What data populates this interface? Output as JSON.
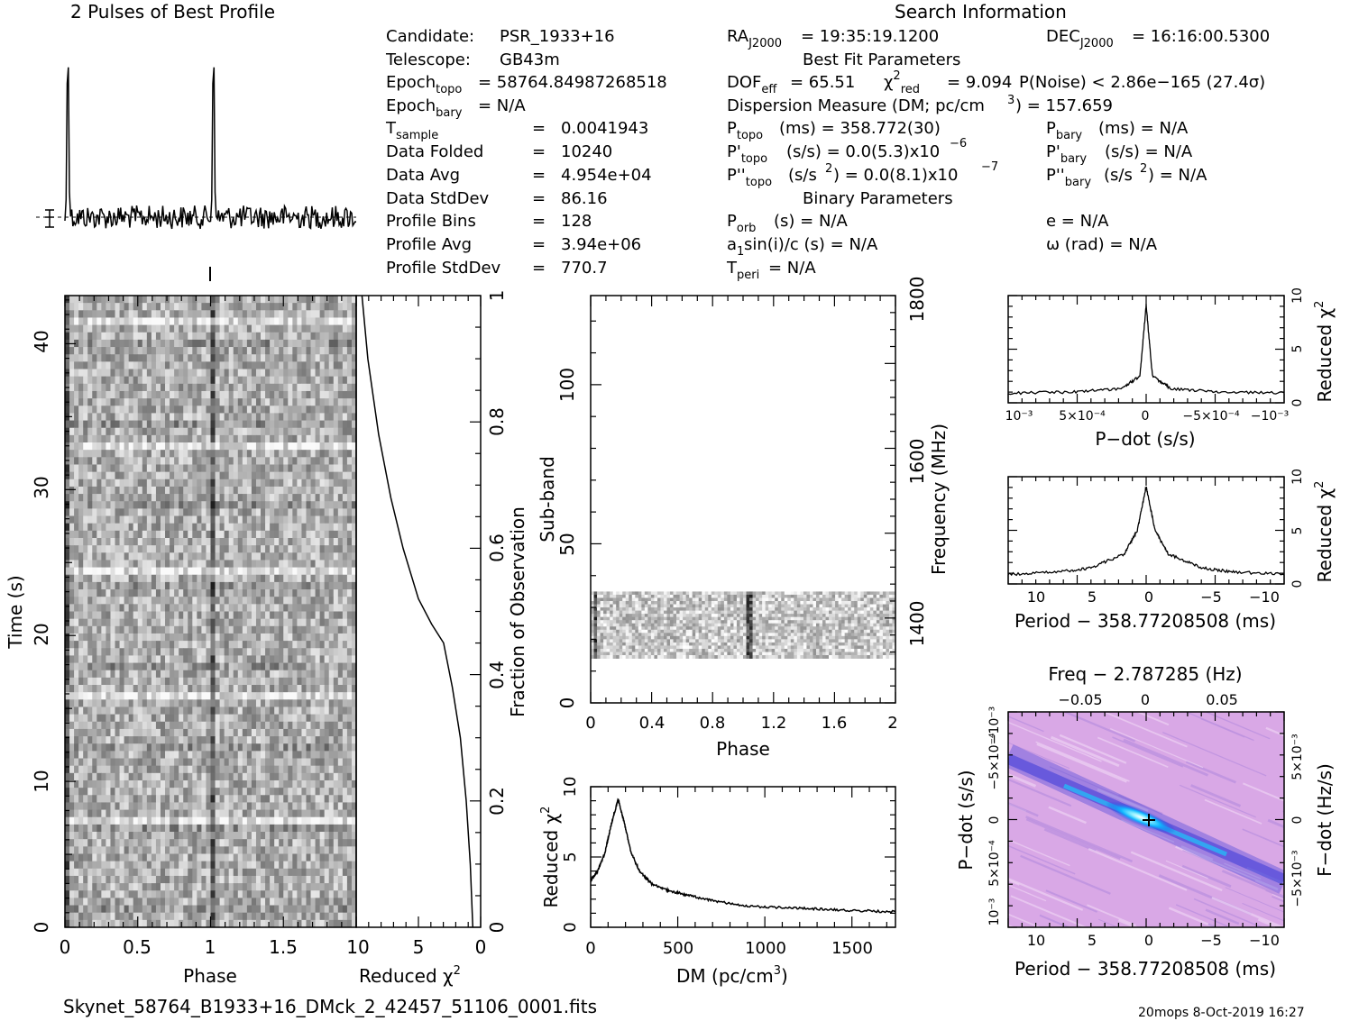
{
  "page": {
    "profile_title": "2 Pulses of Best Profile",
    "search_title": "Search Information",
    "best_fit_title": "Best Fit Parameters",
    "binary_title": "Binary Parameters",
    "filename": "Skynet_58764_B1933+16_DMck_2_42457_51106_0001.fits",
    "footer": "20mops   8-Oct-2019 16:27"
  },
  "info": {
    "candidate_label": "Candidate:",
    "candidate": "PSR_1933+16",
    "telescope_label": "Telescope:",
    "telescope": "GB43m",
    "epoch_topo": "= 58764.84987268518",
    "epoch_bary": "= N/A",
    "t_sample": "0.0041943",
    "data_folded": "10240",
    "data_avg": "4.954e+04",
    "data_stddev": "86.16",
    "profile_bins": "128",
    "profile_avg": "3.94e+06",
    "profile_stddev": "770.7",
    "ra": "= 19:35:19.1200",
    "dec": "= 16:16:00.5300",
    "dof_eff": "= 65.51",
    "chi2_red": "= 9.094",
    "p_noise": "P(Noise) < 2.86e−165   (27.4σ)",
    "dm_label": "Dispersion Measure (DM; pc/cm",
    "dm_value": ") = 157.659",
    "p_topo": "(ms) =  358.772(30)",
    "p_bary": "(ms) = N/A",
    "pd_topo": "(s/s) = 0.0(5.3)x10",
    "pd_topo_exp": "−6",
    "pd_bary": "(s/s) = N/A",
    "pdd_topo": "(s/s",
    "pdd_topo_mid": ") = 0.0(8.1)x10",
    "pdd_topo_exp": "−7",
    "pdd_bary": "(s/s",
    "pdd_bary_end": ") = N/A",
    "p_orb": "(s) = N/A",
    "e": "e = N/A",
    "a1sini": "sin(i)/c (s) = N/A",
    "omega": "ω (rad) = N/A",
    "t_peri": "= N/A"
  },
  "axes": {
    "phase": "Phase",
    "time": "Time (s)",
    "reduced": "Reduced",
    "fraction": "Fraction of Observation",
    "subband": "Sub-band",
    "frequency": "Frequency (MHz)",
    "dm_axis": "DM (pc/cm",
    "pdot": "P−dot (s/s)",
    "period": "Period − 358.77208508 (ms)",
    "freq": "Freq − 2.787285 (Hz)",
    "fdot": "F−dot (Hz/s)"
  },
  "colors": {
    "ink": "#000000",
    "pp_bg": "#d9a8e6",
    "pp_band": "#3a3ad8",
    "pp_core": "#10d8ff"
  },
  "chart_data": [
    {
      "type": "line",
      "title": "2 Pulses of Best Profile",
      "description_axis": "pulse phase 0-2",
      "x_range": [
        0,
        2
      ],
      "peaks_at_phase": [
        0.02,
        1.02
      ],
      "profile_bins": 128
    },
    {
      "type": "heatmap",
      "xlabel": "Phase",
      "ylabel": "Time (s)",
      "x_ticks": [
        "0",
        "0.5",
        "1",
        "1.5"
      ],
      "y_ticks": [
        "0",
        "10",
        "20",
        "30",
        "40"
      ],
      "xlim": [
        0,
        2
      ],
      "ylim": [
        0,
        43.3
      ],
      "pulse_phase": 1.0
    },
    {
      "type": "line",
      "xlabel": "Reduced χ²",
      "ylabel": "Fraction of Observation",
      "x_ticks": [
        "10",
        "5",
        "0"
      ],
      "y_ticks": [
        "0",
        "0.2",
        "0.4",
        "0.6",
        "0.8",
        "1"
      ],
      "xlim": [
        10,
        0
      ],
      "ylim": [
        0,
        1
      ],
      "chi2": [
        0.6,
        0.7,
        0.9,
        1.2,
        1.7,
        2.3,
        3.0,
        4.0,
        5.0,
        6.2,
        7.2,
        8.2,
        9.0,
        9.5
      ],
      "fraction": [
        0.0,
        0.05,
        0.1,
        0.2,
        0.3,
        0.38,
        0.45,
        0.48,
        0.52,
        0.6,
        0.68,
        0.78,
        0.9,
        1.0
      ]
    },
    {
      "type": "heatmap",
      "xlabel": "Phase",
      "ylabel": "Sub-band",
      "y2label": "Frequency (MHz)",
      "x_ticks": [
        "0",
        "0.4",
        "0.8",
        "1.2",
        "1.6",
        "2"
      ],
      "y_ticks": [
        "0",
        "50",
        "100"
      ],
      "y2_ticks": [
        "1400",
        "1600",
        "1800"
      ],
      "xlim": [
        0,
        2
      ],
      "ylim": [
        0,
        128
      ],
      "data_subbands": [
        14,
        35
      ],
      "pulse_phase": [
        0.02,
        1.04
      ]
    },
    {
      "type": "line",
      "xlabel": "DM (pc/cm³)",
      "ylabel": "Reduced χ²",
      "x_ticks": [
        "0",
        "500",
        "1000",
        "1500"
      ],
      "y_ticks": [
        "0",
        "5",
        "10"
      ],
      "xlim": [
        0,
        1750
      ],
      "ylim": [
        0,
        10
      ],
      "x": [
        0,
        40,
        80,
        120,
        157.659,
        190,
        230,
        280,
        350,
        450,
        550,
        700,
        900,
        1100,
        1300,
        1500,
        1750
      ],
      "y": [
        3.3,
        4.0,
        5.2,
        7.4,
        9.1,
        7.6,
        5.4,
        4.0,
        3.1,
        2.6,
        2.3,
        1.9,
        1.5,
        1.4,
        1.3,
        1.2,
        1.1
      ]
    },
    {
      "type": "line",
      "xlabel": "P−dot (s/s)",
      "ylabel": "Reduced χ²",
      "x_ticks": [
        "10⁻³",
        "5×10⁻⁴",
        "0",
        "−5×10⁻⁴",
        "−10⁻³"
      ],
      "y_ticks": [
        "0",
        "5",
        "10"
      ],
      "xlim": [
        0.0011,
        -0.0011
      ],
      "ylim": [
        0,
        10
      ],
      "x": [
        0.0011,
        0.0006,
        0.0002,
        5e-05,
        0.0,
        -5e-05,
        -0.0002,
        -0.0006,
        -0.0011
      ],
      "y": [
        0.9,
        1.0,
        1.3,
        2.5,
        9.094,
        2.5,
        1.3,
        1.0,
        0.9
      ]
    },
    {
      "type": "line",
      "xlabel": "Period − 358.77208508 (ms)",
      "ylabel": "Reduced χ²",
      "x_ticks": [
        "10",
        "5",
        "0",
        "−5",
        "−10"
      ],
      "y_ticks": [
        "0",
        "5",
        "10"
      ],
      "xlim": [
        12.5,
        -12.5
      ],
      "ylim": [
        0,
        10
      ],
      "x": [
        12.5,
        8,
        5,
        2,
        0.8,
        0,
        -0.8,
        -2,
        -5,
        -8,
        -12.5
      ],
      "y": [
        0.9,
        1.1,
        1.5,
        2.8,
        5.0,
        9.094,
        5.0,
        2.8,
        1.5,
        1.1,
        0.9
      ]
    },
    {
      "type": "heatmap",
      "xlabel": "Period − 358.77208508 (ms)",
      "ylabel": "P−dot (s/s)",
      "x2label": "Freq − 2.787285 (Hz)",
      "y2label": "F−dot (Hz/s)",
      "x_ticks": [
        "10",
        "5",
        "0",
        "−5",
        "−10"
      ],
      "x2_ticks": [
        "−0.05",
        "0",
        "0.05"
      ],
      "y_ticks": [
        "10⁻³",
        "5×10⁻⁴",
        "0",
        "−5×10⁻⁴",
        "−10⁻³"
      ],
      "y2_ticks": [
        "−5×10⁻³",
        "0",
        "5×10⁻³"
      ],
      "best_fit_marker": [
        0,
        0
      ]
    }
  ]
}
